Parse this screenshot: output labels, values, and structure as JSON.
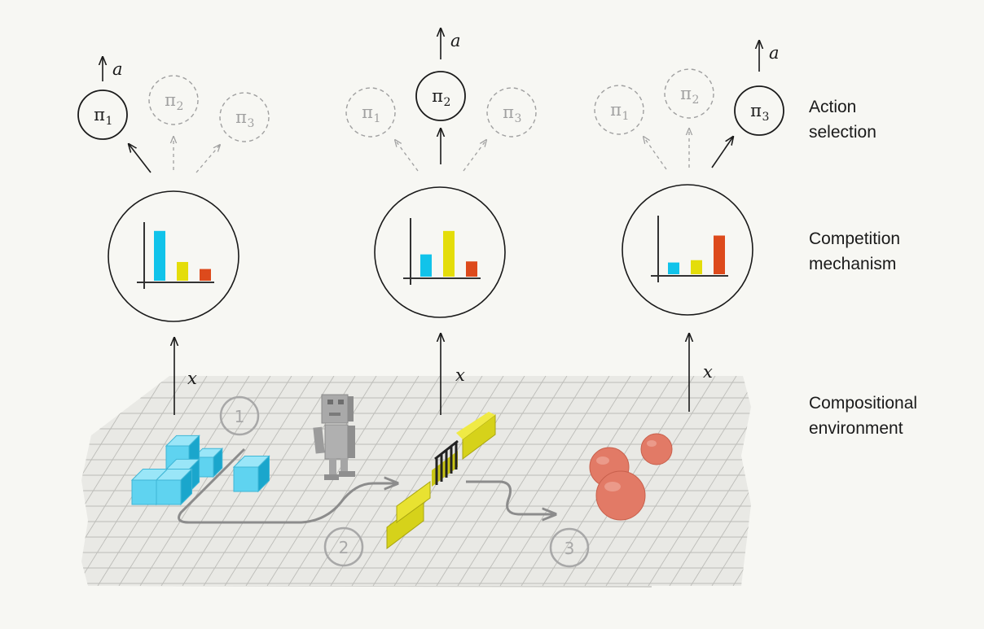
{
  "labels": {
    "action_selection": [
      "Action",
      "selection"
    ],
    "competition": [
      "Competition",
      "mechanism"
    ],
    "environment": [
      "Compositional",
      "environment"
    ]
  },
  "columns": [
    {
      "policies": [
        {
          "symbol": "π",
          "sub": "1",
          "active": true
        },
        {
          "symbol": "π",
          "sub": "2",
          "active": false
        },
        {
          "symbol": "π",
          "sub": "3",
          "active": false
        }
      ],
      "action_label": "a",
      "input_label": "x",
      "bars": [
        0.85,
        0.32,
        0.2
      ]
    },
    {
      "policies": [
        {
          "symbol": "π",
          "sub": "1",
          "active": false
        },
        {
          "symbol": "π",
          "sub": "2",
          "active": true
        },
        {
          "symbol": "π",
          "sub": "3",
          "active": false
        }
      ],
      "action_label": "a",
      "input_label": "x",
      "bars": [
        0.38,
        0.78,
        0.26
      ]
    },
    {
      "policies": [
        {
          "symbol": "π",
          "sub": "1",
          "active": false
        },
        {
          "symbol": "π",
          "sub": "2",
          "active": false
        },
        {
          "symbol": "π",
          "sub": "3",
          "active": true
        }
      ],
      "action_label": "a",
      "input_label": "x",
      "bars": [
        0.2,
        0.24,
        0.66
      ]
    }
  ],
  "stages": [
    "1",
    "2",
    "3"
  ],
  "colors": {
    "bar1": "#11c3ea",
    "bar2": "#e4dd0a",
    "bar3": "#dd4a1c",
    "ink": "#1a1a1a",
    "inactive": "#a0a0a0",
    "grid": "#b8b8b8",
    "floor": "#e6e6e2",
    "cube": "#5fd3f0",
    "ball": "#e27a66",
    "gate": "#d6d21a"
  }
}
